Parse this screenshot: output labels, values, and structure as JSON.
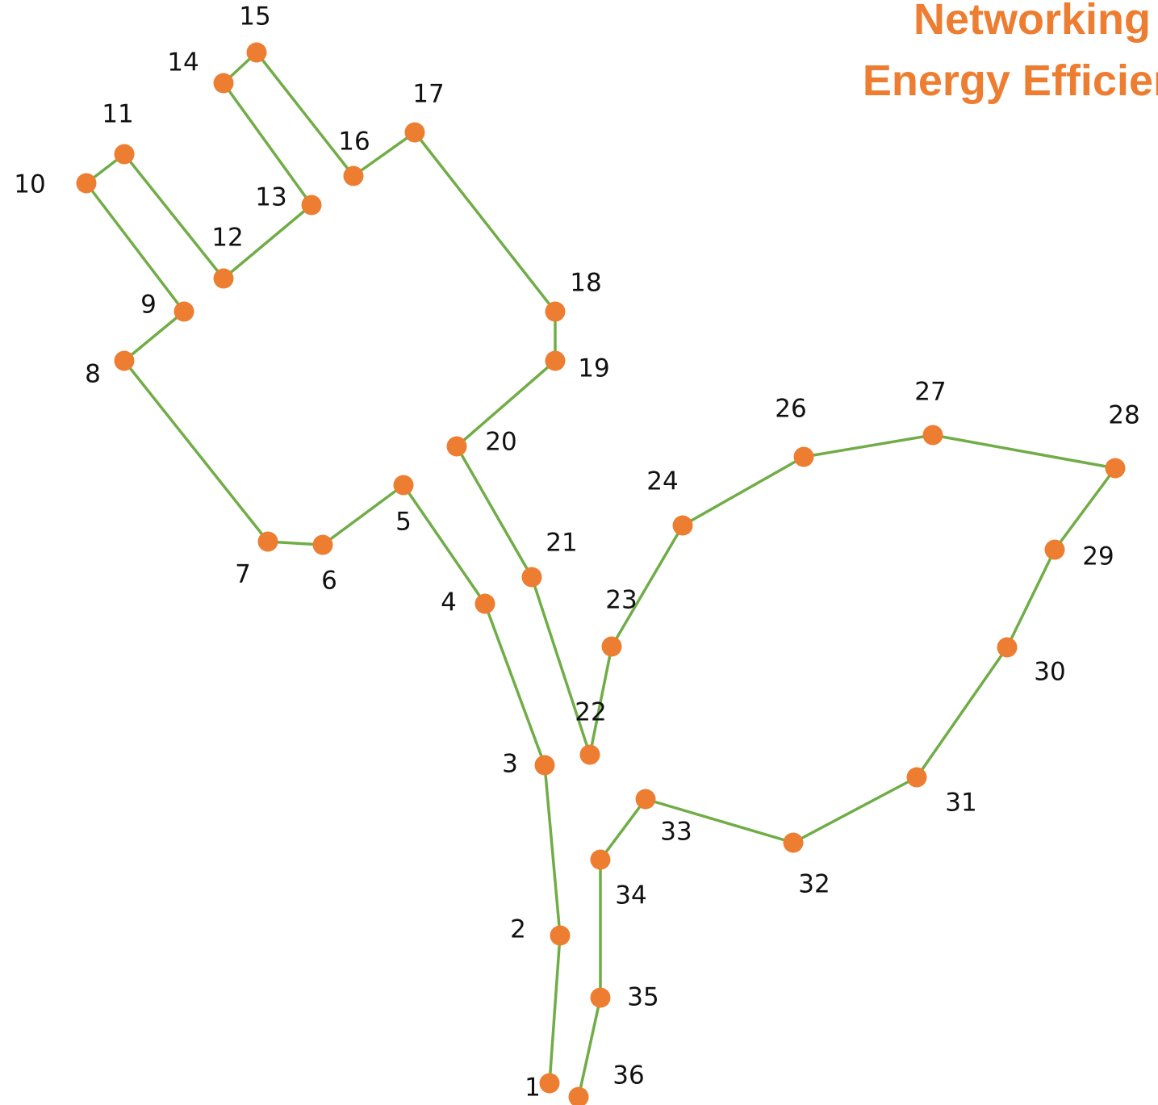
{
  "title": {
    "line1": "Networking fo",
    "line2": "Energy Efficienc"
  },
  "colors": {
    "title": "#ED7D31",
    "dot": "#ED7D31",
    "line": "#70AD47",
    "label": "#111111"
  },
  "puzzle": {
    "points": [
      {
        "n": "1"
      },
      {
        "n": "2"
      },
      {
        "n": "3"
      },
      {
        "n": "4"
      },
      {
        "n": "5"
      },
      {
        "n": "6"
      },
      {
        "n": "7"
      },
      {
        "n": "8"
      },
      {
        "n": "9"
      },
      {
        "n": "10"
      },
      {
        "n": "11"
      },
      {
        "n": "12"
      },
      {
        "n": "13"
      },
      {
        "n": "14"
      },
      {
        "n": "15"
      },
      {
        "n": "16"
      },
      {
        "n": "17"
      },
      {
        "n": "18"
      },
      {
        "n": "19"
      },
      {
        "n": "20"
      },
      {
        "n": "21"
      },
      {
        "n": "22"
      },
      {
        "n": "23"
      },
      {
        "n": "24"
      },
      {
        "n": "26"
      },
      {
        "n": "27"
      },
      {
        "n": "28"
      },
      {
        "n": "29"
      },
      {
        "n": "30"
      },
      {
        "n": "31"
      },
      {
        "n": "32"
      },
      {
        "n": "33"
      },
      {
        "n": "34"
      },
      {
        "n": "35"
      },
      {
        "n": "36"
      }
    ]
  }
}
